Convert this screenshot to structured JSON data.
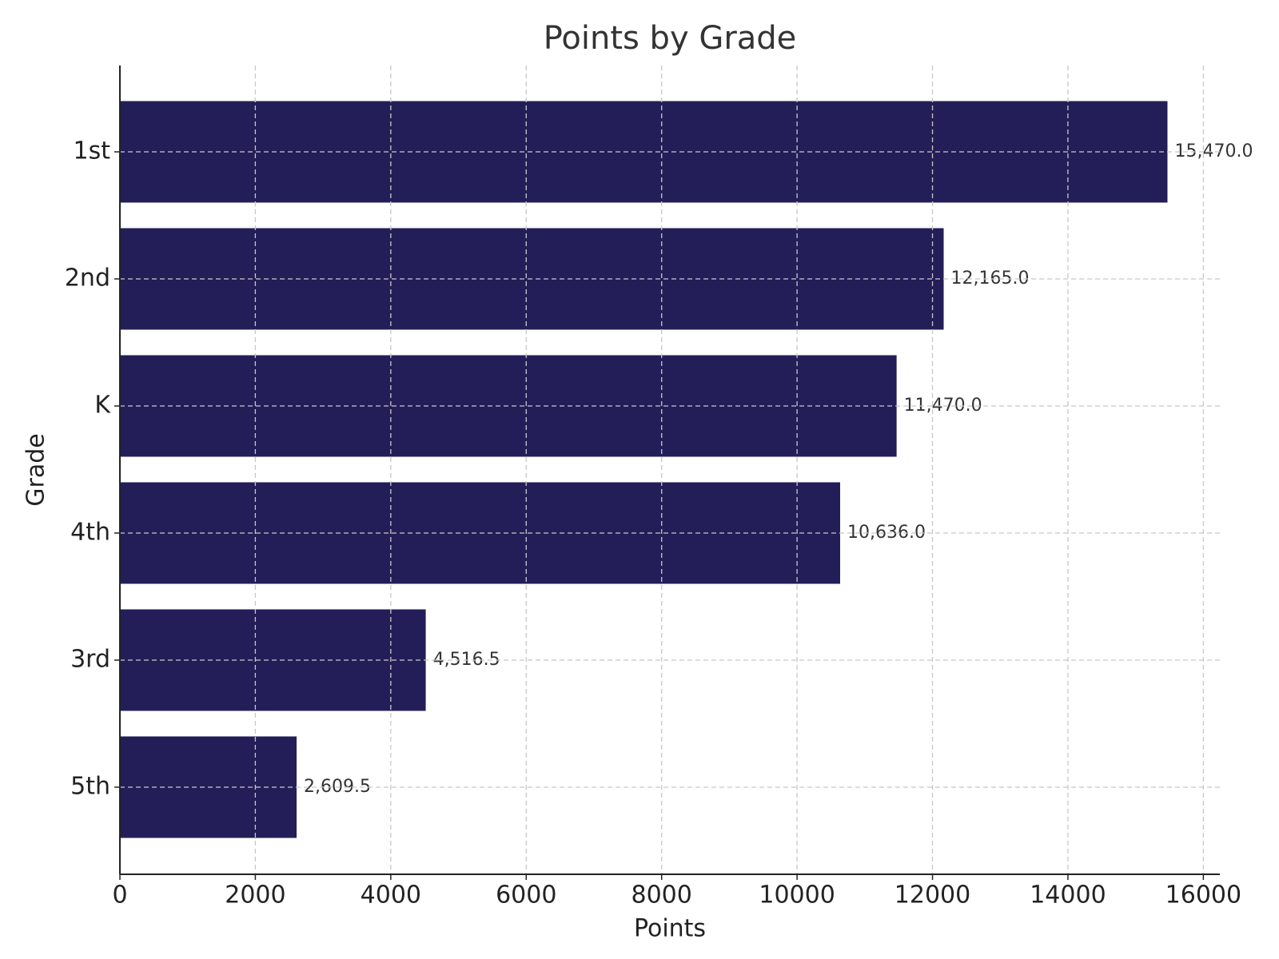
{
  "chart_data": {
    "type": "barh",
    "title": "Points by Grade",
    "xlabel": "Points",
    "ylabel": "Grade",
    "categories": [
      "1st",
      "2nd",
      "K",
      "4th",
      "3rd",
      "5th"
    ],
    "values": [
      15470.0,
      12165.0,
      11470.0,
      10636.0,
      4516.5,
      2609.5
    ],
    "value_labels": [
      "15,470.0",
      "12,165.0",
      "11,470.0",
      "10,636.0",
      "4,516.5",
      "2,609.5"
    ],
    "color": "#231e57",
    "xlim": [
      0,
      16243.5
    ],
    "xticks": [
      0,
      2000,
      4000,
      6000,
      8000,
      10000,
      12000,
      14000,
      16000
    ],
    "grid": true
  }
}
